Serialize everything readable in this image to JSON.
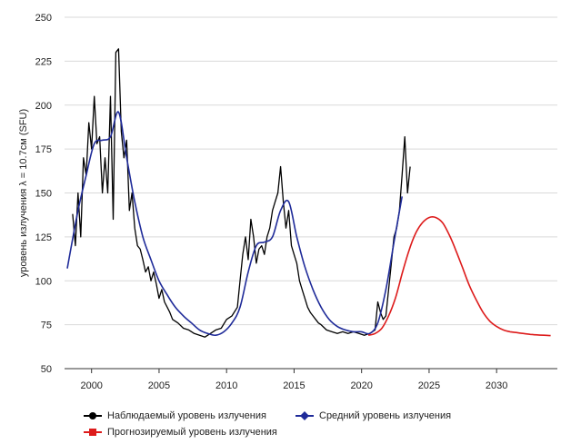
{
  "chart_data": {
    "type": "line",
    "title": "",
    "xlabel": "",
    "ylabel": "уровень излучения λ = 10.7см (SFU)",
    "xlim": [
      1998,
      2034.5
    ],
    "ylim": [
      50,
      250
    ],
    "y_ticks": [
      50,
      75,
      100,
      125,
      150,
      175,
      200,
      225,
      250
    ],
    "x_ticks": [
      2000,
      2005,
      2010,
      2015,
      2020,
      2025,
      2030
    ],
    "grid": "horizontal",
    "legend_placement": "bottom",
    "series": [
      {
        "name": "Наблюдаемый уровень излучения",
        "color": "#000000",
        "marker": "circle",
        "x": [
          1998.6,
          1998.8,
          1999.0,
          1999.2,
          1999.4,
          1999.6,
          1999.8,
          2000.0,
          2000.2,
          2000.4,
          2000.6,
          2000.8,
          2001.0,
          2001.2,
          2001.4,
          2001.6,
          2001.8,
          2002.0,
          2002.2,
          2002.4,
          2002.6,
          2002.8,
          2003.0,
          2003.2,
          2003.4,
          2003.6,
          2003.8,
          2004.0,
          2004.2,
          2004.4,
          2004.6,
          2004.8,
          2005.0,
          2005.2,
          2005.4,
          2005.6,
          2005.8,
          2006.0,
          2006.4,
          2006.8,
          2007.2,
          2007.6,
          2008.0,
          2008.4,
          2008.8,
          2009.2,
          2009.6,
          2010.0,
          2010.4,
          2010.8,
          2011.0,
          2011.2,
          2011.4,
          2011.6,
          2011.8,
          2012.0,
          2012.2,
          2012.4,
          2012.6,
          2012.8,
          2013.0,
          2013.2,
          2013.4,
          2013.6,
          2013.8,
          2014.0,
          2014.2,
          2014.4,
          2014.6,
          2014.8,
          2015.0,
          2015.2,
          2015.4,
          2015.6,
          2015.8,
          2016.0,
          2016.2,
          2016.4,
          2016.6,
          2016.8,
          2017.0,
          2017.4,
          2017.8,
          2018.2,
          2018.6,
          2019.0,
          2019.4,
          2019.8,
          2020.2,
          2020.6,
          2021.0,
          2021.2,
          2021.4,
          2021.6,
          2021.8,
          2022.0,
          2022.2,
          2022.4,
          2022.6,
          2022.8,
          2023.0,
          2023.2,
          2023.4,
          2023.6
        ],
        "values": [
          138,
          120,
          150,
          125,
          170,
          160,
          190,
          175,
          205,
          178,
          182,
          150,
          170,
          150,
          205,
          135,
          230,
          232,
          185,
          170,
          180,
          140,
          150,
          130,
          120,
          118,
          112,
          105,
          108,
          100,
          105,
          98,
          90,
          95,
          88,
          85,
          82,
          78,
          76,
          73,
          72,
          70,
          69,
          68,
          70,
          72,
          73,
          78,
          80,
          85,
          100,
          115,
          125,
          112,
          135,
          125,
          110,
          118,
          120,
          115,
          125,
          130,
          140,
          145,
          150,
          165,
          145,
          130,
          140,
          120,
          115,
          110,
          100,
          95,
          90,
          85,
          82,
          80,
          78,
          76,
          75,
          72,
          71,
          70,
          71,
          70,
          71,
          70,
          69,
          70,
          72,
          88,
          82,
          78,
          80,
          95,
          110,
          125,
          130,
          140,
          160,
          182,
          150,
          165
        ]
      },
      {
        "name": "Средний уровень излучения",
        "color": "#1f2b99",
        "marker": "diamond",
        "x": [
          1998.2,
          1999.0,
          1999.6,
          2000.2,
          2000.8,
          2001.4,
          2002.0,
          2002.6,
          2003.2,
          2003.8,
          2004.4,
          2005.0,
          2005.6,
          2006.2,
          2006.8,
          2007.4,
          2008.0,
          2008.6,
          2009.2,
          2009.8,
          2010.4,
          2011.0,
          2011.6,
          2012.2,
          2012.8,
          2013.4,
          2014.0,
          2014.6,
          2015.2,
          2015.8,
          2016.4,
          2017.0,
          2017.6,
          2018.2,
          2018.8,
          2019.4,
          2020.0,
          2020.6,
          2021.2,
          2021.8,
          2022.4,
          2023.0
        ],
        "values": [
          107,
          140,
          160,
          178,
          180,
          182,
          196,
          170,
          145,
          125,
          112,
          100,
          92,
          85,
          80,
          76,
          72,
          70,
          69,
          71,
          76,
          85,
          105,
          120,
          122,
          125,
          140,
          145,
          125,
          108,
          95,
          85,
          78,
          74,
          72,
          71,
          71,
          70,
          76,
          95,
          122,
          148
        ]
      },
      {
        "name": "Прогнозируемый уровень излучения",
        "color": "#dd1b1b",
        "marker": "square",
        "x": [
          2020.5,
          2021.0,
          2021.5,
          2022.0,
          2022.5,
          2023.0,
          2023.5,
          2024.0,
          2024.5,
          2025.0,
          2025.5,
          2026.0,
          2026.5,
          2027.0,
          2027.5,
          2028.0,
          2028.5,
          2029.0,
          2029.5,
          2030.0,
          2030.5,
          2031.0,
          2031.5,
          2032.0,
          2032.5,
          2033.0,
          2033.5,
          2034.0
        ],
        "values": [
          69,
          70,
          73,
          80,
          90,
          104,
          117,
          127,
          133,
          136,
          136,
          133,
          126,
          117,
          107,
          97,
          89,
          82,
          77,
          74,
          72,
          71,
          70.5,
          70,
          69.5,
          69.2,
          69,
          68.8
        ]
      }
    ]
  }
}
